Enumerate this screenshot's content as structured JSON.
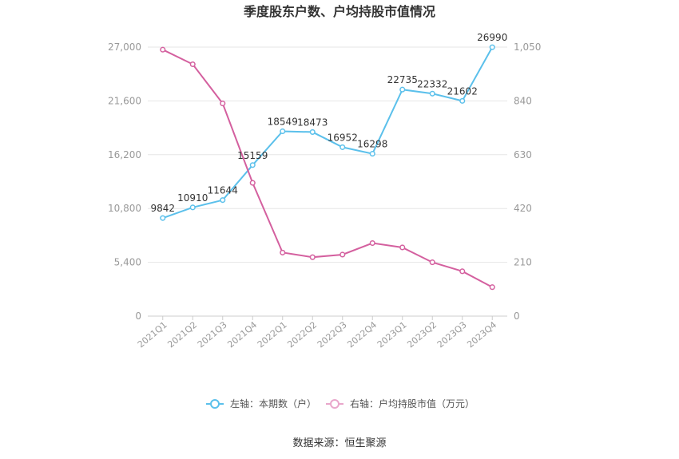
{
  "chart_data": {
    "type": "line",
    "title": "季度股东户数、户均持股市值情况",
    "categories": [
      "2021Q1",
      "2021Q2",
      "2021Q3",
      "2021Q4",
      "2022Q1",
      "2022Q2",
      "2022Q3",
      "2022Q4",
      "2023Q1",
      "2023Q2",
      "2023Q3",
      "2023Q4"
    ],
    "left_axis": {
      "ticks": [
        "0",
        "5,400",
        "10,800",
        "16,200",
        "21,600",
        "27,000"
      ],
      "range": [
        0,
        27000
      ]
    },
    "right_axis": {
      "ticks": [
        "0",
        "210",
        "420",
        "630",
        "840",
        "1,050"
      ],
      "range": [
        0,
        1050
      ]
    },
    "series": [
      {
        "name": "左轴：本期数（户）",
        "axis": "left",
        "color": "#5bc0eb",
        "values": [
          9842,
          10910,
          11644,
          15159,
          18549,
          18473,
          16952,
          16298,
          22735,
          22332,
          21602,
          26990
        ],
        "labels": [
          "9842",
          "10910",
          "11644",
          "15159",
          "18549",
          "18473",
          "16952",
          "16298",
          "22735",
          "22332",
          "21602",
          "26990"
        ]
      },
      {
        "name": "右轴：户均持股市值（万元）",
        "axis": "right",
        "color": "#d4609f",
        "values": [
          1040,
          983,
          830,
          520,
          248,
          230,
          240,
          285,
          268,
          210,
          175,
          113
        ]
      }
    ],
    "grid": true,
    "legend_position": "bottom"
  },
  "source": "数据来源：恒生聚源"
}
